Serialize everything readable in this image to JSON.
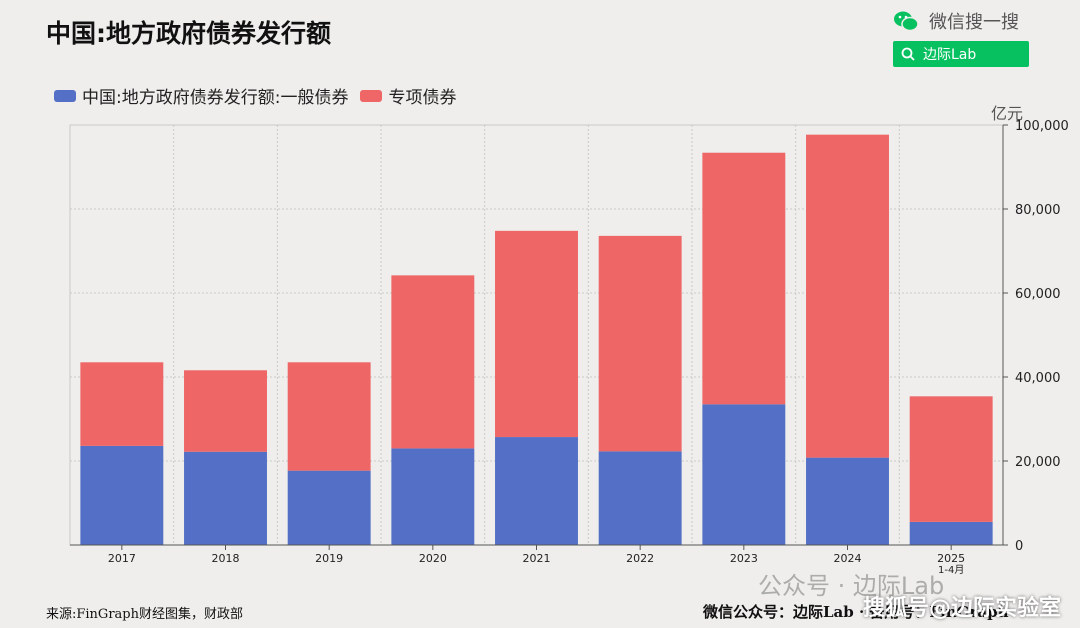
{
  "header": {
    "title": "中国:地方政府债券发行额",
    "wechat_label": "微信搜一搜",
    "search_text": "边际Lab"
  },
  "legend": {
    "general_label": "中国:地方政府债券发行额:一般债券",
    "special_label": "专项债券"
  },
  "colors": {
    "general": "#5470c6",
    "special": "#ee6666",
    "wechat_green": "#07c160"
  },
  "chart_data": {
    "type": "bar",
    "stacked": true,
    "categories": [
      "2017",
      "2018",
      "2019",
      "2020",
      "2021",
      "2022",
      "2023",
      "2024",
      "2025\n1-4月"
    ],
    "series": [
      {
        "name": "中国:地方政府债券发行额:一般债券",
        "values": [
          23600,
          22200,
          17700,
          23000,
          25700,
          22300,
          33500,
          20800,
          5500
        ]
      },
      {
        "name": "专项债券",
        "values": [
          19900,
          19400,
          25800,
          41200,
          49100,
          51300,
          59900,
          76900,
          29900
        ]
      }
    ],
    "unit": "亿元",
    "ylim": [
      0,
      100000
    ],
    "yticks": [
      0,
      20000,
      40000,
      60000,
      80000,
      100000
    ],
    "ytick_labels": [
      "0",
      "20,000",
      "40,000",
      "60,000",
      "80,000",
      "100,000"
    ],
    "y_axis_position": "right",
    "grid": true,
    "legend_position": "top-left"
  },
  "footer": {
    "source": "来源:FinGraph财经图集，财政部",
    "account": "微信公众号：边际Lab · 备用号：FinGraph",
    "watermark1": "公众号 · 边际Lab",
    "watermark2": "搜狐号@边际实验室"
  }
}
